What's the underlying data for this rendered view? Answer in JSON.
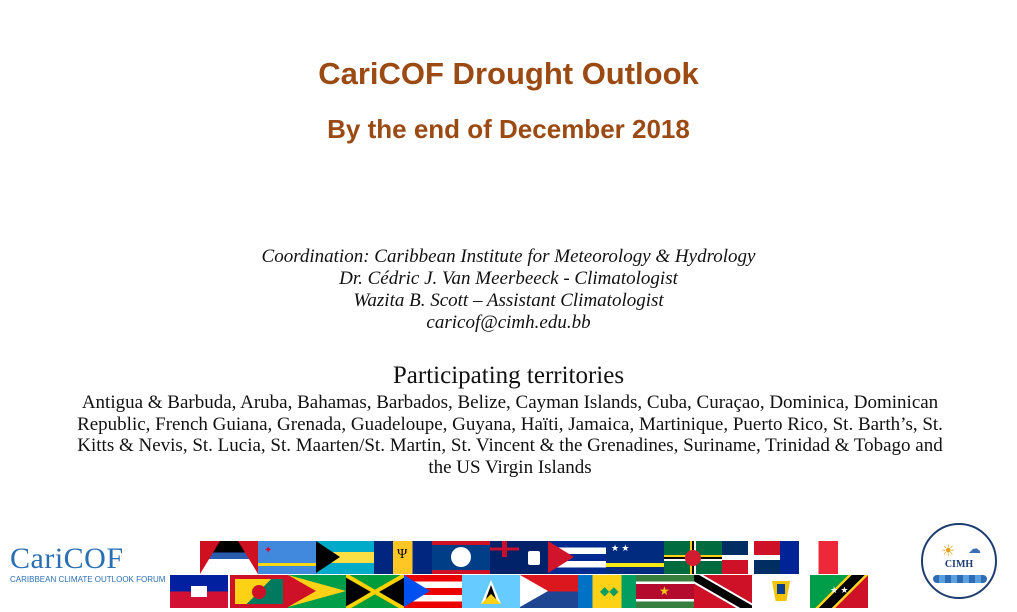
{
  "header": {
    "title": "CariCOF Drought Outlook",
    "subtitle": "By the end of December 2018"
  },
  "coordination": {
    "line1": "Coordination: Caribbean Institute for Meteorology & Hydrology",
    "line2": "Dr. Cédric J. Van Meerbeeck - Climatologist",
    "line3": "Wazita B. Scott – Assistant Climatologist",
    "email": "caricof@cimh.edu.bb"
  },
  "participating": {
    "heading": "Participating territories",
    "list": "Antigua & Barbuda, Aruba, Bahamas, Barbados, Belize, Cayman Islands, Cuba, Curaçao, Dominica, Dominican Republic, French Guiana, Grenada, Guadeloupe, Guyana, Haïti, Jamaica, Martinique, Puerto Rico, St. Barth’s, St. Kitts & Nevis, St. Lucia, St. Maarten/St. Martin, St. Vincent & the Grenadines, Suriname, Trinidad & Tobago and the US Virgin Islands"
  },
  "logo": {
    "name": "CariCOF",
    "tagline": "CARIBBEAN CLIMATE OUTLOOK FORUM"
  },
  "cimh_logo": {
    "label": "CIMH"
  },
  "flags": {
    "top_row": [
      "antigua-barbuda",
      "aruba",
      "bahamas",
      "barbados",
      "belize",
      "cayman-islands",
      "cuba",
      "curacao",
      "dominica",
      "dominican-republic",
      "france"
    ],
    "bottom_row": [
      "haiti",
      "grenada",
      "guyana",
      "jamaica",
      "puerto-rico",
      "st-lucia",
      "st-maarten",
      "st-vincent",
      "suriname",
      "trinidad-tobago",
      "us-virgin-islands",
      "st-kitts-nevis"
    ]
  }
}
